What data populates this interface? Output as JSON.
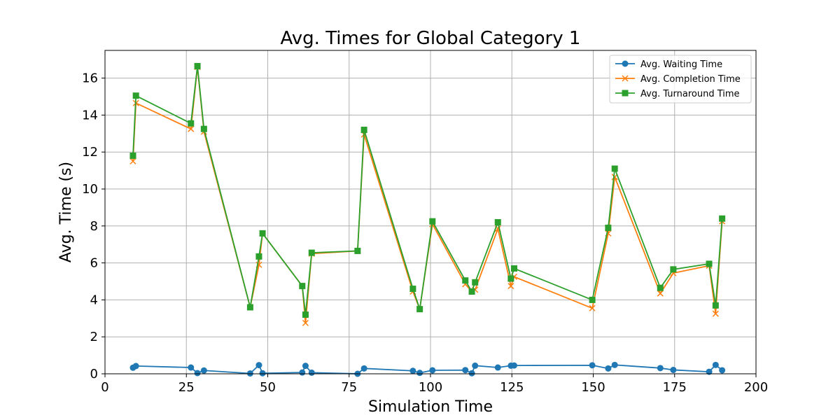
{
  "chart_data": {
    "type": "line",
    "title": "Avg. Times for Global Category 1",
    "xlabel": "Simulation Time",
    "ylabel": "Avg. Time (s)",
    "xlim": [
      0,
      200
    ],
    "ylim": [
      0,
      17.5
    ],
    "xticks": [
      0,
      25,
      50,
      75,
      100,
      125,
      150,
      175,
      200
    ],
    "yticks": [
      0,
      2,
      4,
      6,
      8,
      10,
      12,
      14,
      16
    ],
    "grid": true,
    "legend_position": "top-right",
    "x": [
      8.6,
      9.5,
      26.4,
      28.4,
      30.4,
      44.6,
      47.3,
      48.4,
      60.6,
      61.6,
      63.5,
      77.6,
      79.6,
      94.6,
      96.7,
      100.6,
      110.7,
      112.7,
      113.7,
      120.7,
      124.7,
      125.7,
      149.7,
      154.6,
      156.6,
      170.6,
      174.6,
      185.6,
      187.6,
      189.6
    ],
    "series": [
      {
        "name": "Avg. Waiting Time",
        "color": "#1f77b4",
        "marker": "circle",
        "values": [
          0.33,
          0.42,
          0.34,
          0.04,
          0.18,
          0.02,
          0.47,
          0.03,
          0.07,
          0.43,
          0.06,
          0.0,
          0.29,
          0.16,
          0.05,
          0.19,
          0.2,
          0.03,
          0.44,
          0.34,
          0.44,
          0.45,
          0.46,
          0.29,
          0.48,
          0.31,
          0.21,
          0.11,
          0.48,
          0.19
        ]
      },
      {
        "name": "Avg. Completion Time",
        "color": "#ff7f0e",
        "marker": "x",
        "values": [
          11.5,
          14.65,
          13.25,
          16.6,
          13.1,
          3.6,
          5.9,
          7.6,
          4.75,
          2.75,
          6.5,
          6.65,
          12.95,
          4.45,
          3.5,
          8.1,
          4.85,
          4.45,
          4.55,
          7.85,
          4.75,
          5.25,
          3.55,
          7.6,
          10.65,
          4.35,
          5.45,
          5.85,
          3.25,
          8.25
        ]
      },
      {
        "name": "Avg. Turnaround Time",
        "color": "#2ca02c",
        "marker": "square",
        "values": [
          11.8,
          15.05,
          13.55,
          16.65,
          13.25,
          3.6,
          6.35,
          7.6,
          4.75,
          3.2,
          6.55,
          6.65,
          13.2,
          4.6,
          3.5,
          8.25,
          5.05,
          4.45,
          4.95,
          8.2,
          5.15,
          5.7,
          4.0,
          7.9,
          11.1,
          4.65,
          5.65,
          5.95,
          3.7,
          8.4
        ]
      }
    ]
  }
}
